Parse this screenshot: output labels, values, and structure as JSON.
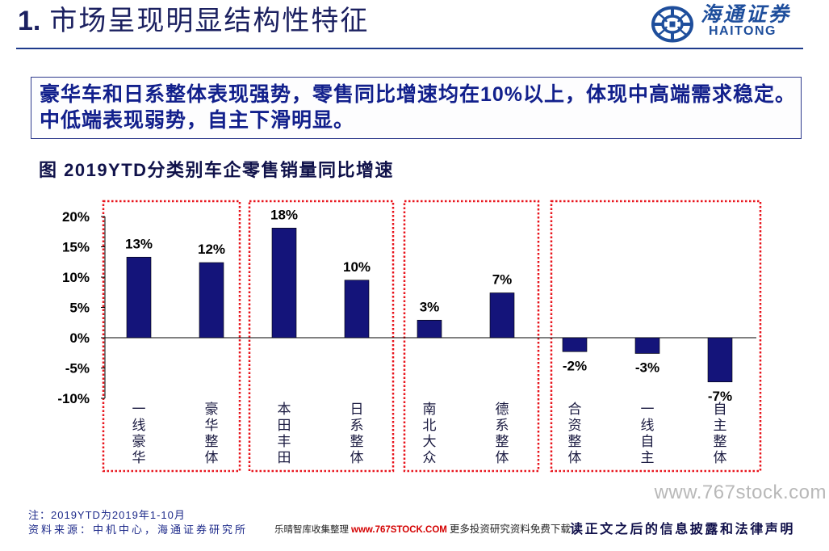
{
  "slide": {
    "title_number": "1.",
    "title_text": "市场呈现明显结构性特征"
  },
  "logo": {
    "cn": "海通证券",
    "en": "HAITONG",
    "icon": "haitong-emblem-icon"
  },
  "summary": {
    "line1": "豪华车和日系整体表现强势，零售同比增速均在10%以上，体现中高端需求稳定。",
    "line2": "中低端表现弱势，自主下滑明显。"
  },
  "chart_data": {
    "type": "bar",
    "title": "图 2019YTD分类别车企零售销量同比增速",
    "xlabel": "",
    "ylabel": "",
    "categories": [
      "一线豪华",
      "豪华整体",
      "本田丰田",
      "日系整体",
      "南北大众",
      "德系整体",
      "合资整体",
      "一线自主",
      "自主整体"
    ],
    "values": [
      13.3,
      12.4,
      18.1,
      9.5,
      2.9,
      7.4,
      -2.3,
      -2.6,
      -7.3
    ],
    "data_labels": [
      "13%",
      "12%",
      "18%",
      "10%",
      "3%",
      "7%",
      "-2%",
      "-3%",
      "-7%"
    ],
    "ylim": [
      -10,
      20
    ],
    "yticks": [
      20,
      15,
      10,
      5,
      0,
      -5,
      -10
    ],
    "ytick_labels": [
      "20%",
      "15%",
      "10%",
      "5%",
      "0%",
      "-5%",
      "-10%"
    ],
    "grid": false,
    "legend": "none"
  },
  "watermark": "www.767stock.com",
  "footer": {
    "note": "注：2019YTD为2019年1-10月",
    "source": "资料来源：中机中心，海通证券研究所",
    "aggregator": {
      "prefix": "乐晴智库收集整理",
      "url": "www.767STOCK.COM",
      "suffix": "更多投资研究资料免费下载"
    },
    "disclaimer": "读正文之后的信息披露和法律声明"
  },
  "colors": {
    "title": "#1b2060",
    "accent_line": "#1f3b8c",
    "logo": "#1e4e9c",
    "summary_text": "#12208c",
    "summary_border": "#2e3a8c",
    "summary_bg": "#fdfdfe",
    "caption": "#10124a",
    "bar": "#14147a",
    "axis": "#000000",
    "highlight_box": "#e8141c",
    "category_label": "#1a1a40",
    "watermark": "#b8b8b8",
    "footer_text": "#1d2a8a",
    "url": "#d40000",
    "disclaimer": "#10104a"
  }
}
